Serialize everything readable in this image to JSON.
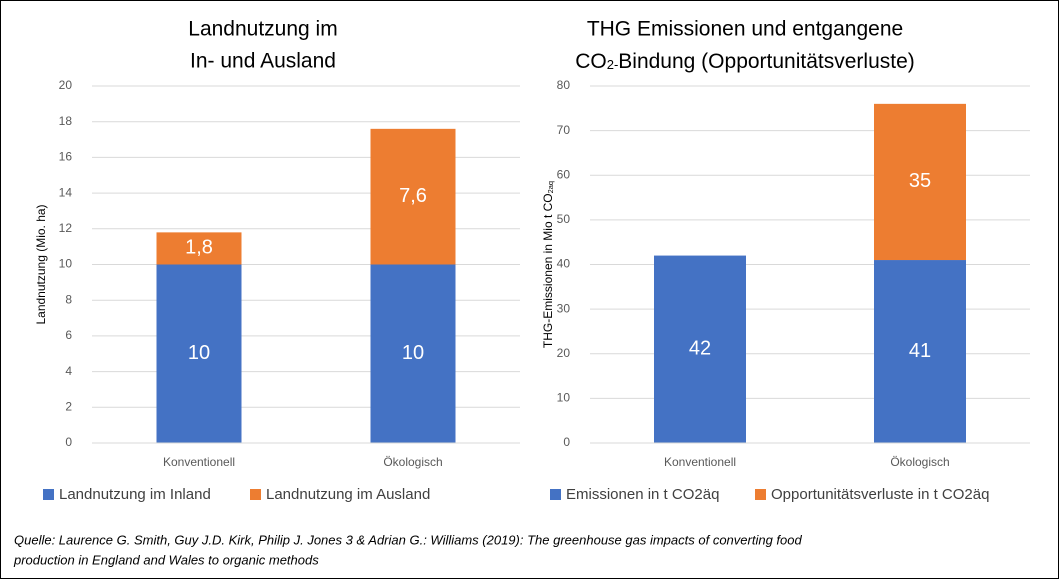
{
  "chart_data": [
    {
      "type": "bar",
      "stacked": true,
      "title": [
        "Landnutzung im",
        "In- und Ausland"
      ],
      "ylabel": [
        "Landnutzung (Mio. ha)"
      ],
      "categories": [
        "Konventionell",
        "Ökologisch"
      ],
      "ylim": [
        0,
        20
      ],
      "yticks": [
        0,
        2,
        4,
        6,
        8,
        10,
        12,
        14,
        16,
        18,
        20
      ],
      "grid": true,
      "series": [
        {
          "name": "Landnutzung im Inland",
          "color": "#4472c4",
          "values": [
            10,
            10
          ]
        },
        {
          "name": "Landnutzung im Ausland",
          "color": "#ed7d31",
          "values": [
            1.8,
            7.6
          ],
          "value_labels": [
            "1,8",
            "7,6"
          ]
        }
      ]
    },
    {
      "type": "bar",
      "stacked": true,
      "title": [
        "THG Emissionen und entgangene",
        [
          "CO",
          "2-",
          "Bindung (Opportunitätsverluste)"
        ]
      ],
      "ylabel": [
        "THG-Emissionen in Mio t CO",
        "2aq"
      ],
      "categories": [
        "Konventionell",
        "Ökologisch"
      ],
      "ylim": [
        0,
        80
      ],
      "yticks": [
        0,
        10,
        20,
        30,
        40,
        50,
        60,
        70,
        80
      ],
      "grid": true,
      "series": [
        {
          "name": "Emissionen in t CO2äq",
          "color": "#4472c4",
          "values": [
            42,
            41
          ]
        },
        {
          "name": "Opportunitätsverluste in t CO2äq",
          "color": "#ed7d31",
          "values": [
            null,
            35
          ]
        }
      ]
    }
  ],
  "source": [
    "Quelle: Laurence G. Smith, Guy J.D. Kirk, Philip J. Jones 3 & Adrian G.: Williams (2019): The greenhouse gas impacts of converting food",
    "production in England and Wales to organic methods"
  ]
}
